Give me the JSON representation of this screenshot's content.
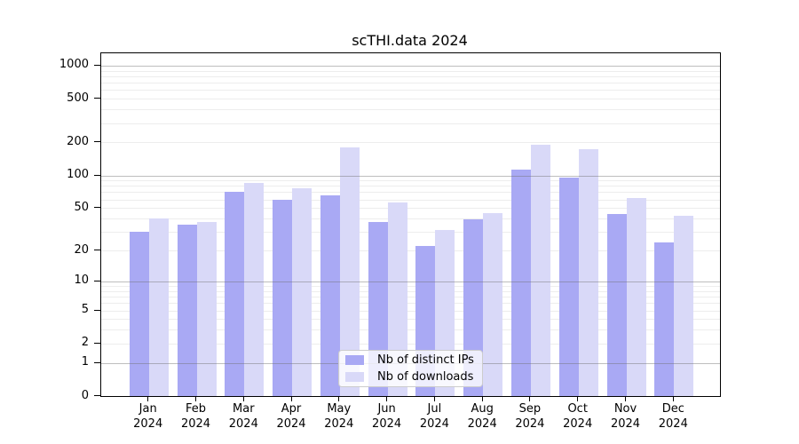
{
  "chart_data": {
    "type": "bar",
    "title": "scTHI.data 2024",
    "categories": [
      "Jan 2024",
      "Feb 2024",
      "Mar 2024",
      "Apr 2024",
      "May 2024",
      "Jun 2024",
      "Jul 2024",
      "Aug 2024",
      "Sep 2024",
      "Oct 2024",
      "Nov 2024",
      "Dec 2024"
    ],
    "series": [
      {
        "name": "Nb of distinct IPs",
        "color": "#a9a9f4",
        "values": [
          30,
          35,
          71,
          60,
          65,
          37,
          22,
          39,
          112,
          95,
          44,
          24
        ]
      },
      {
        "name": "Nb of downloads",
        "color": "#d9d9f8",
        "values": [
          40,
          37,
          85,
          76,
          181,
          56,
          31,
          45,
          189,
          175,
          62,
          42
        ]
      }
    ],
    "yticks": [
      0,
      1,
      2,
      5,
      10,
      20,
      50,
      100,
      200,
      500,
      1000
    ],
    "ylim": [
      0,
      1000
    ],
    "y_scale": "log10(value+1)",
    "grid": true,
    "grid_minor_color": "#ededed",
    "grid_major_color": "#b0b0b0",
    "axis_color": "#000000",
    "legend_position": "lower-center-inside"
  }
}
